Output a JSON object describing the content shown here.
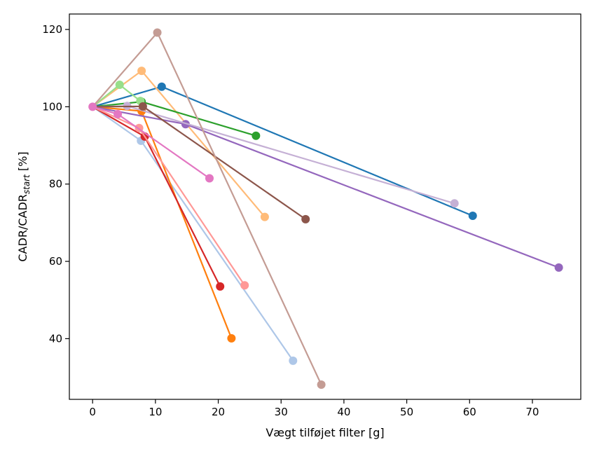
{
  "chart_data": {
    "type": "line",
    "title": "",
    "xlabel": "Vægt tilføjet filter [g]",
    "ylabel": {
      "main": "CADR/CADR",
      "subscript": "start",
      "suffix": " [%]"
    },
    "xlim": [
      -3.7,
      77.7
    ],
    "ylim": [
      24.3,
      124.0
    ],
    "xticks": [
      0,
      10,
      20,
      30,
      40,
      50,
      60,
      70
    ],
    "yticks": [
      40,
      60,
      80,
      100,
      120
    ],
    "grid": false,
    "series": [
      {
        "name": "blue",
        "color": "#1f77b4",
        "x": [
          0,
          11.0,
          60.5
        ],
        "y": [
          100,
          105.2,
          71.8
        ]
      },
      {
        "name": "light-blue",
        "color": "#aec7e8",
        "x": [
          0,
          7.7,
          31.9
        ],
        "y": [
          100,
          91.2,
          34.3
        ]
      },
      {
        "name": "orange",
        "color": "#ff7f0e",
        "x": [
          0,
          7.8,
          22.1
        ],
        "y": [
          100,
          98.9,
          40.1
        ]
      },
      {
        "name": "light-orange",
        "color": "#ffbb78",
        "x": [
          0,
          7.8,
          27.4
        ],
        "y": [
          100,
          109.3,
          71.5
        ]
      },
      {
        "name": "green",
        "color": "#2ca02c",
        "x": [
          0,
          7.8,
          26.0
        ],
        "y": [
          100,
          101.3,
          92.5
        ]
      },
      {
        "name": "light-green",
        "color": "#98df8a",
        "x": [
          0,
          4.3,
          7.6
        ],
        "y": [
          100,
          105.7,
          101.5
        ]
      },
      {
        "name": "red",
        "color": "#d62728",
        "x": [
          0,
          8.3,
          20.3
        ],
        "y": [
          100,
          92.3,
          53.5
        ]
      },
      {
        "name": "light-red",
        "color": "#ff9896",
        "x": [
          0,
          7.4,
          24.2
        ],
        "y": [
          100,
          94.5,
          53.8
        ]
      },
      {
        "name": "purple",
        "color": "#9467bd",
        "x": [
          0,
          14.8,
          74.2
        ],
        "y": [
          100,
          95.5,
          58.4
        ]
      },
      {
        "name": "light-purple",
        "color": "#c5b0d5",
        "x": [
          0,
          5.5,
          57.6
        ],
        "y": [
          100,
          100.2,
          75.0
        ]
      },
      {
        "name": "brown",
        "color": "#8c564b",
        "x": [
          0,
          8.0,
          33.9
        ],
        "y": [
          100,
          100.1,
          70.9
        ]
      },
      {
        "name": "light-brown",
        "color": "#c49c94",
        "x": [
          0,
          10.3,
          36.4
        ],
        "y": [
          100,
          119.2,
          28.1
        ]
      },
      {
        "name": "pink",
        "color": "#e377c2",
        "x": [
          0,
          4.0,
          18.6
        ],
        "y": [
          100,
          98.1,
          81.5
        ]
      }
    ]
  }
}
